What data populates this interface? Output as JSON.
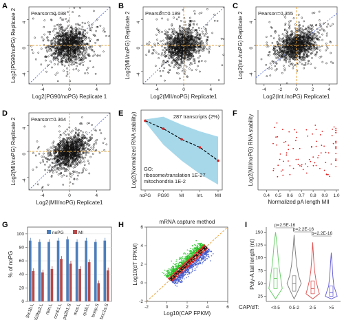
{
  "colors": {
    "orange": "#e8a33c",
    "blue": "#3b53c9",
    "red": "#e02020",
    "green": "#1ec21e",
    "band": "#a6d8ea",
    "bar_blue": "#4d7ebb",
    "bar_red": "#b54a4a",
    "gray_violin": "#808080",
    "v_green": "#6ccf6c",
    "v_red": "#e05555",
    "v_blue": "#6a63d6"
  },
  "chart_data": [
    {
      "panel": "A",
      "type": "scatter",
      "annotation": "Pearson=0.038",
      "xlabel": "Log2(PG90/noPG) Replicate 1",
      "ylabel": "Log2(PG90/noPG) Replicate 2",
      "xticks": [
        "-4",
        "0",
        "4"
      ],
      "yticks": [
        "-4",
        "0",
        "4"
      ],
      "xlim": [
        -6,
        6
      ],
      "ylim": [
        -6,
        6
      ],
      "n_points": 1200,
      "spread": 1.3,
      "correlation": 0.038
    },
    {
      "panel": "B",
      "type": "scatter",
      "annotation": "Pearson=0.189",
      "xlabel": "Log2(MII/noPG) Replicate1",
      "ylabel": "Log2(MII/noPG) Replicate 2",
      "xticks": [
        "-4",
        "0",
        "4"
      ],
      "yticks": [
        "-4",
        "0",
        "4"
      ],
      "xlim": [
        -6,
        6
      ],
      "ylim": [
        -6,
        6
      ],
      "n_points": 1200,
      "spread": 1.3,
      "correlation": 0.189
    },
    {
      "panel": "C",
      "type": "scatter",
      "annotation": "Pearson=0.355",
      "xlabel": "Log2(Int./noPG) Replicate1",
      "ylabel": "Log2(Int./noPG) Replicate 2",
      "xticks": [
        "-4",
        "-2",
        "0",
        "2",
        "4"
      ],
      "yticks": [
        "-4",
        "0",
        "4"
      ],
      "xlim": [
        -5,
        5
      ],
      "ylim": [
        -6,
        6
      ],
      "n_points": 1200,
      "spread": 1.2,
      "correlation": 0.355
    },
    {
      "panel": "D",
      "type": "scatter",
      "annotation": "Pearson=0.364",
      "xlabel": "Log2(MII/noPG) Replicate1",
      "ylabel": "Log2(MII/noPG) Replicate 2",
      "xticks": [
        "-4",
        "0",
        "4"
      ],
      "yticks": [
        "-4",
        "0",
        "4"
      ],
      "xlim": [
        -6,
        6
      ],
      "ylim": [
        -6,
        6
      ],
      "n_points": 1200,
      "spread": 1.2,
      "correlation": 0.364
    },
    {
      "panel": "E",
      "type": "line",
      "annotation": "287 transcripts (2%)",
      "go_title": "GO:",
      "go_terms": [
        "ribosome/translation 1E-27",
        "mitochondria 1E-2"
      ],
      "ylabel": "Log2(Normalized RNA stability)",
      "categories": [
        "noPG",
        "PG90",
        "MI",
        "Int.",
        "MII"
      ],
      "values": [
        0,
        -0.3,
        -0.7,
        -1.0,
        -1.5
      ],
      "band_upper": [
        0.05,
        0.15,
        -0.15,
        -0.4,
        -0.6
      ],
      "band_lower": [
        -0.05,
        -0.9,
        -1.5,
        -2.0,
        -2.4
      ],
      "ylim": [
        -2.6,
        0.4
      ]
    },
    {
      "panel": "F",
      "type": "scatter",
      "xlabel": "Normalized pA length MII",
      "ylabel": "Log2(MII/noPG) RNA stability",
      "xticks": [
        "0.4",
        "0.5",
        "0.6",
        "0.7",
        "0.8",
        "0.9",
        "1.0"
      ],
      "xlim": [
        0.35,
        1.0
      ],
      "ylim": [
        -4.5,
        0.5
      ]
    },
    {
      "panel": "G",
      "type": "bar",
      "ylabel": "% of noPG",
      "yticks": [
        "0",
        "20",
        "40",
        "60",
        "80",
        "100"
      ],
      "ylim": [
        0,
        110
      ],
      "categories": [
        "Stc1b.L",
        "tp53bp2.L",
        "rbm.L",
        "ccnb1.L",
        "pa2b1.S",
        "mos.L",
        "rp16.L",
        "bnep.S",
        "bnc1a.S"
      ],
      "series": [
        {
          "name": "noPG",
          "values": [
            90,
            88,
            88,
            90,
            92,
            88,
            90,
            88,
            90
          ]
        },
        {
          "name": "MI",
          "values": [
            45,
            43,
            48,
            63,
            56,
            48,
            58,
            27,
            46
          ]
        }
      ]
    },
    {
      "panel": "H",
      "type": "scatter",
      "title": "mRNA capture method",
      "xlabel": "Log10(CAP FPKM)",
      "ylabel": "Log10(dT FPKM)",
      "xticks": [
        "-2",
        "0",
        "2",
        "4",
        "6"
      ],
      "yticks": [
        "-2",
        "0",
        "2",
        "4",
        "6"
      ],
      "xlim": [
        -2,
        6
      ],
      "ylim": [
        -2,
        6
      ]
    },
    {
      "panel": "I",
      "type": "violin",
      "ylabel": "Poly-A tail length (nt)",
      "xlabel": "CAP/dT:",
      "categories": [
        "<0.5",
        "0.5-2",
        "2-5",
        ">5"
      ],
      "yticks": [
        "25",
        "50",
        "75",
        "100",
        "125",
        "150"
      ],
      "ylim": [
        15,
        160
      ],
      "pvalues": [
        "p=2.5E-16",
        "p=2.2E-16",
        "p=2.2E-16"
      ]
    }
  ]
}
